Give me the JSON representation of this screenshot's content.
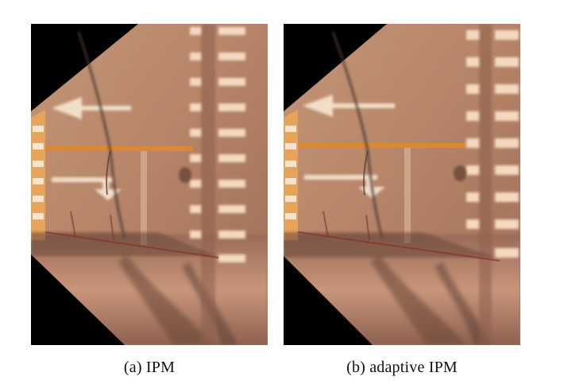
{
  "figure": {
    "panels": [
      {
        "caption": "(a)  IPM"
      },
      {
        "caption": "(b)  adaptive IPM"
      }
    ]
  },
  "colors": {
    "road": "#b9876b",
    "road_light": "#d6a88a",
    "lane_orange": "#d9892e",
    "paint_white": "#f2ddc8",
    "crack": "#4a3a33",
    "shadow": "#6e4b3e",
    "void": "#000000"
  }
}
